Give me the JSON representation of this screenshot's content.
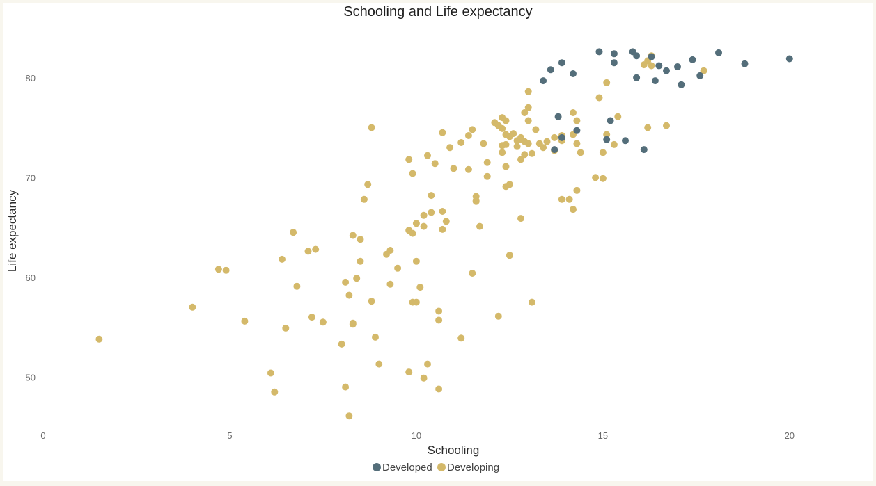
{
  "chart_data": {
    "type": "scatter",
    "title": "Schooling and Life expectancy",
    "xlabel": "Schooling",
    "ylabel": "Life expectancy",
    "xlim": [
      0,
      22
    ],
    "ylim": [
      45,
      85
    ],
    "xticks": [
      0,
      5,
      10,
      15,
      20
    ],
    "yticks": [
      50,
      60,
      70,
      80
    ],
    "grid": false,
    "legend_position": "bottom-center",
    "series": [
      {
        "name": "Developed",
        "color": "#546e7a",
        "points": [
          [
            14.9,
            82.6
          ],
          [
            15.8,
            82.6
          ],
          [
            15.3,
            82.4
          ],
          [
            15.9,
            82.2
          ],
          [
            16.3,
            82.1
          ],
          [
            13.9,
            81.5
          ],
          [
            15.3,
            81.5
          ],
          [
            16.5,
            81.2
          ],
          [
            17.0,
            81.1
          ],
          [
            17.4,
            81.8
          ],
          [
            18.1,
            82.5
          ],
          [
            18.8,
            81.4
          ],
          [
            20.0,
            81.9
          ],
          [
            13.6,
            80.8
          ],
          [
            14.2,
            80.4
          ],
          [
            15.9,
            80.0
          ],
          [
            16.4,
            79.7
          ],
          [
            16.7,
            80.7
          ],
          [
            17.6,
            80.2
          ],
          [
            17.1,
            79.3
          ],
          [
            13.4,
            79.7
          ],
          [
            13.8,
            76.1
          ],
          [
            15.2,
            75.7
          ],
          [
            14.3,
            74.7
          ],
          [
            13.9,
            74.0
          ],
          [
            15.1,
            73.8
          ],
          [
            15.6,
            73.7
          ],
          [
            13.7,
            72.8
          ],
          [
            16.1,
            72.8
          ]
        ]
      },
      {
        "name": "Developing",
        "color": "#d4b96a",
        "points": [
          [
            1.5,
            53.8
          ],
          [
            4.0,
            57.0
          ],
          [
            4.7,
            60.8
          ],
          [
            4.9,
            60.7
          ],
          [
            5.4,
            55.6
          ],
          [
            6.1,
            50.4
          ],
          [
            6.2,
            48.5
          ],
          [
            6.4,
            61.8
          ],
          [
            6.5,
            54.9
          ],
          [
            6.7,
            64.5
          ],
          [
            6.8,
            59.1
          ],
          [
            7.1,
            62.6
          ],
          [
            7.2,
            56.0
          ],
          [
            7.3,
            62.8
          ],
          [
            7.5,
            55.5
          ],
          [
            8.0,
            53.3
          ],
          [
            8.1,
            49.0
          ],
          [
            8.1,
            59.5
          ],
          [
            8.2,
            58.2
          ],
          [
            8.2,
            46.1
          ],
          [
            8.3,
            55.4
          ],
          [
            8.3,
            55.3
          ],
          [
            8.3,
            64.2
          ],
          [
            8.4,
            59.9
          ],
          [
            8.5,
            63.8
          ],
          [
            8.5,
            61.6
          ],
          [
            8.6,
            67.8
          ],
          [
            8.7,
            69.3
          ],
          [
            8.8,
            75.0
          ],
          [
            8.8,
            57.6
          ],
          [
            8.9,
            54.0
          ],
          [
            9.0,
            51.3
          ],
          [
            9.2,
            62.3
          ],
          [
            9.3,
            62.7
          ],
          [
            9.3,
            59.3
          ],
          [
            9.5,
            60.9
          ],
          [
            9.8,
            50.5
          ],
          [
            9.8,
            71.8
          ],
          [
            9.8,
            64.7
          ],
          [
            9.9,
            57.5
          ],
          [
            9.9,
            64.4
          ],
          [
            9.9,
            70.4
          ],
          [
            10.0,
            65.4
          ],
          [
            10.0,
            61.6
          ],
          [
            10.0,
            57.5
          ],
          [
            10.1,
            59.0
          ],
          [
            10.2,
            49.9
          ],
          [
            10.2,
            65.1
          ],
          [
            10.2,
            66.2
          ],
          [
            10.3,
            72.2
          ],
          [
            10.3,
            51.3
          ],
          [
            10.4,
            66.5
          ],
          [
            10.4,
            68.2
          ],
          [
            10.5,
            71.4
          ],
          [
            10.6,
            55.7
          ],
          [
            10.6,
            56.6
          ],
          [
            10.6,
            48.8
          ],
          [
            10.7,
            64.8
          ],
          [
            10.7,
            74.5
          ],
          [
            10.7,
            66.6
          ],
          [
            10.8,
            65.6
          ],
          [
            10.9,
            73.0
          ],
          [
            11.0,
            70.9
          ],
          [
            11.2,
            73.5
          ],
          [
            11.2,
            53.9
          ],
          [
            11.4,
            70.8
          ],
          [
            11.4,
            74.2
          ],
          [
            11.5,
            74.8
          ],
          [
            11.5,
            60.4
          ],
          [
            11.6,
            67.6
          ],
          [
            11.6,
            67.7
          ],
          [
            11.6,
            68.1
          ],
          [
            11.7,
            65.1
          ],
          [
            11.8,
            73.4
          ],
          [
            11.9,
            70.1
          ],
          [
            11.9,
            71.5
          ],
          [
            12.1,
            75.5
          ],
          [
            12.2,
            56.1
          ],
          [
            12.2,
            75.2
          ],
          [
            12.3,
            74.9
          ],
          [
            12.3,
            73.2
          ],
          [
            12.3,
            76.0
          ],
          [
            12.3,
            72.5
          ],
          [
            12.4,
            73.3
          ],
          [
            12.4,
            75.7
          ],
          [
            12.4,
            74.3
          ],
          [
            12.4,
            69.1
          ],
          [
            12.4,
            71.1
          ],
          [
            12.5,
            74.1
          ],
          [
            12.5,
            62.2
          ],
          [
            12.5,
            69.3
          ],
          [
            12.6,
            74.4
          ],
          [
            12.7,
            73.1
          ],
          [
            12.7,
            73.7
          ],
          [
            12.8,
            71.8
          ],
          [
            12.8,
            65.9
          ],
          [
            12.8,
            74.0
          ],
          [
            12.8,
            73.8
          ],
          [
            12.9,
            73.6
          ],
          [
            12.9,
            72.3
          ],
          [
            12.9,
            76.5
          ],
          [
            13.0,
            78.6
          ],
          [
            13.0,
            77.0
          ],
          [
            13.0,
            75.7
          ],
          [
            13.0,
            73.4
          ],
          [
            13.1,
            57.5
          ],
          [
            13.1,
            72.4
          ],
          [
            13.2,
            74.8
          ],
          [
            13.3,
            73.4
          ],
          [
            13.4,
            73.0
          ],
          [
            13.5,
            73.6
          ],
          [
            13.7,
            74.0
          ],
          [
            13.7,
            72.7
          ],
          [
            13.9,
            73.7
          ],
          [
            13.9,
            67.8
          ],
          [
            13.9,
            74.2
          ],
          [
            14.1,
            67.8
          ],
          [
            14.2,
            66.8
          ],
          [
            14.2,
            74.3
          ],
          [
            14.2,
            76.5
          ],
          [
            14.3,
            75.7
          ],
          [
            14.3,
            73.4
          ],
          [
            14.3,
            68.7
          ],
          [
            14.4,
            72.5
          ],
          [
            14.8,
            70.0
          ],
          [
            14.9,
            78.0
          ],
          [
            15.0,
            69.9
          ],
          [
            15.0,
            72.5
          ],
          [
            15.1,
            79.5
          ],
          [
            15.1,
            74.3
          ],
          [
            15.3,
            73.3
          ],
          [
            15.4,
            76.1
          ],
          [
            16.1,
            81.3
          ],
          [
            16.2,
            81.7
          ],
          [
            16.2,
            75.0
          ],
          [
            16.3,
            82.2
          ],
          [
            16.3,
            81.2
          ],
          [
            16.7,
            75.2
          ],
          [
            17.7,
            80.7
          ]
        ]
      }
    ]
  }
}
